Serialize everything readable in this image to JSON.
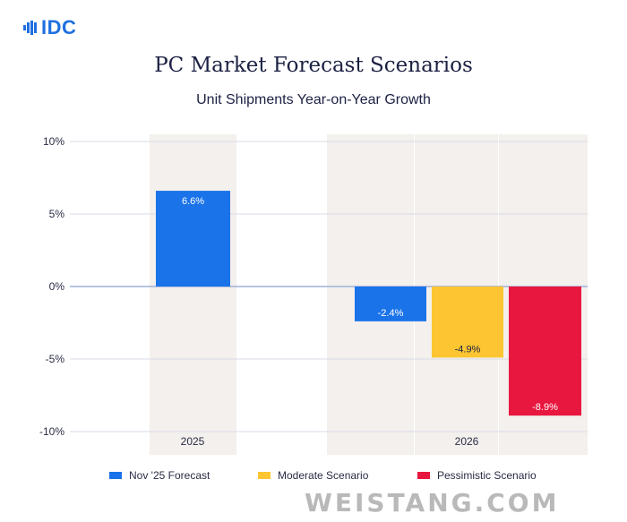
{
  "brand": {
    "logo_text": "IDC",
    "logo_color": "#1f6fe0"
  },
  "watermark": "WEISTANG.COM",
  "chart_data": {
    "type": "bar",
    "title": "PC Market Forecast Scenarios",
    "subtitle": "Unit Shipments Year-on-Year Growth",
    "xlabel": "",
    "ylabel": "",
    "ylim": [
      -10,
      10
    ],
    "yticks": [
      10,
      5,
      0,
      -5,
      -10
    ],
    "ytick_labels": [
      "10%",
      "5%",
      "0%",
      "-5%",
      "-10%"
    ],
    "grid": true,
    "legend_position": "bottom",
    "categories": [
      "2025",
      "2026"
    ],
    "series": [
      {
        "name": "Nov '25 Forecast",
        "color": "#1a73e8",
        "values": [
          6.6,
          -2.4
        ],
        "labels": [
          "6.6%",
          "-2.4%"
        ]
      },
      {
        "name": "Moderate Scenario",
        "color": "#fcc531",
        "values": [
          null,
          -4.9
        ],
        "labels": [
          null,
          "-4.9%"
        ]
      },
      {
        "name": "Pessimistic Scenario",
        "color": "#e8173f",
        "values": [
          null,
          -8.9
        ],
        "labels": [
          null,
          "-8.9%"
        ]
      }
    ],
    "label_colors": {
      "on_dark": "#ffffff",
      "on_light": "#1c2143"
    }
  }
}
